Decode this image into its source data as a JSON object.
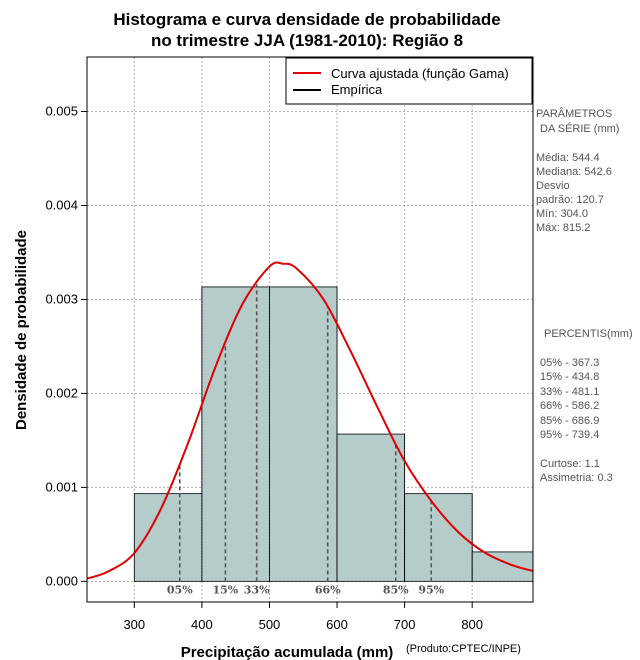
{
  "chart_data": {
    "type": "histogram",
    "title_line1": "Histograma e curva densidade de probabilidade",
    "title_line2": "no trimestre JJA (1981-2010): Região 8",
    "xlabel": "Precipitação acumulada (mm)",
    "ylabel": "Densidade de probabilidade",
    "credit": "(Produto:CPTEC/INPE)",
    "xlim": [
      230,
      890
    ],
    "ylim": [
      -0.00022,
      0.00558
    ],
    "x_ticks": [
      300,
      400,
      500,
      600,
      700,
      800
    ],
    "x_tick_labels": [
      "300",
      "400",
      "500",
      "600",
      "700",
      "800"
    ],
    "y_ticks": [
      0.0,
      0.001,
      0.002,
      0.003,
      0.004,
      0.005
    ],
    "y_tick_labels": [
      "0.000",
      "0.001",
      "0.002",
      "0.003",
      "0.004",
      "0.005"
    ],
    "grid": true,
    "bars": [
      {
        "x0": 300,
        "x1": 400,
        "density": 0.000933
      },
      {
        "x0": 400,
        "x1": 500,
        "density": 0.003133
      },
      {
        "x0": 500,
        "x1": 600,
        "density": 0.003133
      },
      {
        "x0": 600,
        "x1": 700,
        "density": 0.001567
      },
      {
        "x0": 700,
        "x1": 800,
        "density": 0.000933
      },
      {
        "x0": 800,
        "x1": 890,
        "density": 0.000313
      }
    ],
    "fitted_curve": {
      "name": "Curva ajustada (função Gama)",
      "color": "#e00000",
      "x": [
        230,
        260,
        300,
        340,
        380,
        420,
        460,
        500,
        520,
        540,
        580,
        620,
        660,
        700,
        740,
        780,
        820,
        860,
        890
      ],
      "y": [
        3e-05,
        0.0001,
        0.0003,
        0.00078,
        0.00148,
        0.00228,
        0.00295,
        0.00335,
        0.00338,
        0.00333,
        0.003,
        0.00245,
        0.00185,
        0.00128,
        0.00085,
        0.00052,
        0.0003,
        0.00017,
        0.00011
      ]
    },
    "empirical": {
      "name": "Empírica",
      "color": "#000000"
    },
    "bar_color": "#b5cccb",
    "percentile_lines": [
      {
        "label": "05%",
        "value": 367.3
      },
      {
        "label": "15%",
        "value": 434.8
      },
      {
        "label": "33%",
        "value": 481.1
      },
      {
        "label": "66%",
        "value": 586.2
      },
      {
        "label": "85%",
        "value": 686.9
      },
      {
        "label": "95%",
        "value": 739.4
      }
    ],
    "legend_position": "top-right"
  },
  "side_panel": {
    "params_title_1": "PARÂMETROS",
    "params_title_2": "DA SÉRIE (mm)",
    "params": [
      "Média:  544.4",
      "Mediana:  542.6",
      "Desvio",
      "padrão:  120.7",
      "Mín:  304.0",
      "Máx:  815.2"
    ],
    "percentis_title": "PERCENTIS(mm)",
    "percentis": [
      "05% -   367.3",
      "15% -   434.8",
      "33% -   481.1",
      "66% -   586.2",
      "85% -   686.9",
      "95% -   739.4"
    ],
    "shape": [
      "Curtose:  1.1",
      "Assimetria:  0.3"
    ]
  }
}
